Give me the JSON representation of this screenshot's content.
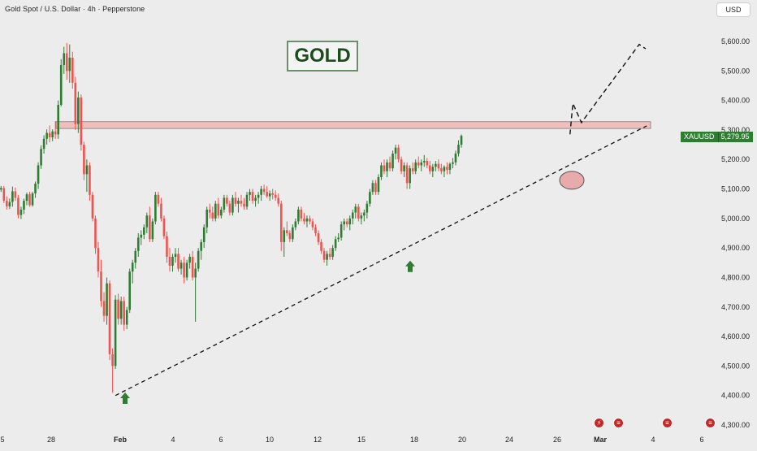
{
  "header": {
    "title": "Gold Spot / U.S. Dollar · 4h · Pepperstone",
    "currency_button": "USD"
  },
  "annotations": {
    "gold_label": "GOLD",
    "symbol": "XAUUSD",
    "last_price": "5,279.95"
  },
  "colors": {
    "up": "#2e7d32",
    "down": "#ef5350",
    "background": "#ececec",
    "resistance_zone": "#f2b6b6",
    "accent_green": "#2e7d32",
    "marker_red": "#c62828"
  },
  "event_icons": [
    "dividend-icon",
    "flag-icon",
    "flag-icon",
    "flag-icon"
  ],
  "chart_data": {
    "type": "candlestick",
    "title": "Gold Spot / U.S. Dollar · 4h · Pepperstone",
    "ylim": [
      4280,
      5680
    ],
    "y_ticks": [
      "5,600.00",
      "5,500.00",
      "5,400.00",
      "5,300.00",
      "5,200.00",
      "5,100.00",
      "5,000.00",
      "4,900.00",
      "4,800.00",
      "4,700.00",
      "4,600.00",
      "4,500.00",
      "4,400.00",
      "4,300.00"
    ],
    "x_ticks": [
      "5",
      "28",
      "Feb",
      "4",
      "6",
      "10",
      "12",
      "15",
      "18",
      "20",
      "24",
      "26",
      "Mar",
      "4",
      "6"
    ],
    "x_tick_index": [
      0,
      17,
      40,
      57,
      73,
      89,
      105,
      121,
      137,
      153,
      169,
      184,
      199,
      216,
      232
    ],
    "last_price": 5279.95,
    "resistance_zone": [
      5305,
      5328
    ],
    "trendline": {
      "from": [
        40,
        4400
      ],
      "to": [
        212,
        5245
      ]
    },
    "projection_path": [
      [
        199,
        5285
      ],
      [
        200,
        5390
      ],
      [
        203,
        5325
      ],
      [
        212,
        5595
      ],
      [
        213,
        5580
      ]
    ],
    "up_arrows": [
      [
        40,
        4388
      ],
      [
        135,
        4835
      ]
    ],
    "highlight_circle": [
      188,
      5135
    ],
    "candles": [
      [
        5098,
        5110,
        5090,
        5103
      ],
      [
        5103,
        5110,
        5052,
        5060
      ],
      [
        5060,
        5075,
        5030,
        5041
      ],
      [
        5041,
        5068,
        5032,
        5056
      ],
      [
        5056,
        5108,
        5040,
        5092
      ],
      [
        5092,
        5105,
        5060,
        5070
      ],
      [
        5070,
        5080,
        5000,
        5012
      ],
      [
        5012,
        5040,
        4998,
        5030
      ],
      [
        5030,
        5067,
        5015,
        5060
      ],
      [
        5060,
        5088,
        5045,
        5082
      ],
      [
        5082,
        5090,
        5040,
        5045
      ],
      [
        5045,
        5090,
        5040,
        5085
      ],
      [
        5085,
        5125,
        5070,
        5118
      ],
      [
        5118,
        5190,
        5100,
        5180
      ],
      [
        5180,
        5248,
        5168,
        5236
      ],
      [
        5236,
        5282,
        5220,
        5270
      ],
      [
        5270,
        5302,
        5250,
        5290
      ],
      [
        5290,
        5315,
        5258,
        5275
      ],
      [
        5275,
        5302,
        5262,
        5295
      ],
      [
        5295,
        5330,
        5270,
        5285
      ],
      [
        5285,
        5400,
        5270,
        5385
      ],
      [
        5385,
        5540,
        5380,
        5520
      ],
      [
        5520,
        5582,
        5490,
        5560
      ],
      [
        5560,
        5595,
        5470,
        5500
      ],
      [
        5500,
        5590,
        5460,
        5545
      ],
      [
        5545,
        5565,
        5440,
        5460
      ],
      [
        5460,
        5480,
        5300,
        5320
      ],
      [
        5320,
        5430,
        5290,
        5410
      ],
      [
        5410,
        5420,
        5230,
        5250
      ],
      [
        5250,
        5260,
        5130,
        5150
      ],
      [
        5150,
        5200,
        5090,
        5180
      ],
      [
        5180,
        5190,
        5060,
        5080
      ],
      [
        5080,
        5090,
        4990,
        5000
      ],
      [
        5000,
        5010,
        4880,
        4900
      ],
      [
        4900,
        4920,
        4800,
        4820
      ],
      [
        4820,
        4860,
        4700,
        4720
      ],
      [
        4720,
        4750,
        4650,
        4670
      ],
      [
        4670,
        4800,
        4640,
        4780
      ],
      [
        4780,
        4790,
        4520,
        4540
      ],
      [
        4540,
        4560,
        4410,
        4500
      ],
      [
        4500,
        4740,
        4490,
        4725
      ],
      [
        4725,
        4745,
        4640,
        4660
      ],
      [
        4660,
        4735,
        4640,
        4720
      ],
      [
        4720,
        4735,
        4620,
        4640
      ],
      [
        4640,
        4700,
        4625,
        4690
      ],
      [
        4690,
        4830,
        4680,
        4820
      ],
      [
        4820,
        4860,
        4780,
        4850
      ],
      [
        4850,
        4900,
        4830,
        4890
      ],
      [
        4890,
        4950,
        4870,
        4935
      ],
      [
        4935,
        4960,
        4910,
        4945
      ],
      [
        4945,
        4980,
        4930,
        4970
      ],
      [
        4970,
        5020,
        4950,
        5010
      ],
      [
        5010,
        5040,
        4920,
        4930
      ],
      [
        4930,
        5000,
        4920,
        4990
      ],
      [
        4990,
        5090,
        4980,
        5080
      ],
      [
        5080,
        5090,
        5040,
        5050
      ],
      [
        5050,
        5070,
        4990,
        5000
      ],
      [
        5000,
        5010,
        4930,
        4940
      ],
      [
        4940,
        4955,
        4850,
        4870
      ],
      [
        4870,
        4900,
        4820,
        4840
      ],
      [
        4840,
        4880,
        4820,
        4870
      ],
      [
        4870,
        4900,
        4850,
        4880
      ],
      [
        4880,
        4900,
        4820,
        4830
      ],
      [
        4830,
        4860,
        4810,
        4850
      ],
      [
        4850,
        4870,
        4780,
        4800
      ],
      [
        4800,
        4860,
        4790,
        4850
      ],
      [
        4850,
        4880,
        4830,
        4870
      ],
      [
        4870,
        4890,
        4790,
        4800
      ],
      [
        4800,
        4850,
        4650,
        4830
      ],
      [
        4830,
        4900,
        4820,
        4890
      ],
      [
        4890,
        4930,
        4860,
        4920
      ],
      [
        4920,
        4980,
        4900,
        4970
      ],
      [
        4970,
        5040,
        4950,
        5030
      ],
      [
        5030,
        5050,
        5000,
        5020
      ],
      [
        5020,
        5040,
        4990,
        5000
      ],
      [
        5000,
        5060,
        4990,
        5050
      ],
      [
        5050,
        5070,
        5000,
        5010
      ],
      [
        5010,
        5040,
        5000,
        5030
      ],
      [
        5030,
        5080,
        5020,
        5070
      ],
      [
        5070,
        5080,
        5040,
        5050
      ],
      [
        5050,
        5060,
        5010,
        5020
      ],
      [
        5020,
        5080,
        5010,
        5070
      ],
      [
        5070,
        5090,
        5040,
        5050
      ],
      [
        5050,
        5070,
        5020,
        5060
      ],
      [
        5060,
        5080,
        5040,
        5050
      ],
      [
        5050,
        5070,
        5030,
        5040
      ],
      [
        5040,
        5090,
        5030,
        5080
      ],
      [
        5080,
        5100,
        5060,
        5090
      ],
      [
        5090,
        5100,
        5050,
        5060
      ],
      [
        5060,
        5080,
        5040,
        5070
      ],
      [
        5070,
        5090,
        5050,
        5080
      ],
      [
        5080,
        5110,
        5060,
        5100
      ],
      [
        5100,
        5115,
        5080,
        5090
      ],
      [
        5090,
        5110,
        5070,
        5075
      ],
      [
        5075,
        5095,
        5060,
        5085
      ],
      [
        5085,
        5100,
        5065,
        5080
      ],
      [
        5080,
        5095,
        5060,
        5070
      ],
      [
        5070,
        5085,
        5040,
        5050
      ],
      [
        5050,
        5060,
        4890,
        4920
      ],
      [
        4920,
        4970,
        4870,
        4960
      ],
      [
        4960,
        4990,
        4940,
        4950
      ],
      [
        4950,
        4960,
        4920,
        4930
      ],
      [
        4930,
        4980,
        4920,
        4970
      ],
      [
        4970,
        5000,
        4960,
        4990
      ],
      [
        4990,
        5040,
        4980,
        5030
      ],
      [
        5030,
        5040,
        4990,
        5000
      ],
      [
        5000,
        5020,
        4980,
        4990
      ],
      [
        4990,
        5010,
        4970,
        5000
      ],
      [
        5000,
        5010,
        4980,
        4990
      ],
      [
        4990,
        5000,
        4960,
        4970
      ],
      [
        4970,
        4980,
        4940,
        4950
      ],
      [
        4950,
        4960,
        4910,
        4920
      ],
      [
        4920,
        4930,
        4880,
        4890
      ],
      [
        4890,
        4900,
        4850,
        4860
      ],
      [
        4860,
        4890,
        4840,
        4880
      ],
      [
        4880,
        4900,
        4860,
        4870
      ],
      [
        4870,
        4910,
        4860,
        4900
      ],
      [
        4900,
        4940,
        4890,
        4930
      ],
      [
        4930,
        4950,
        4920,
        4935
      ],
      [
        4935,
        4990,
        4925,
        4980
      ],
      [
        4980,
        5000,
        4960,
        4990
      ],
      [
        4990,
        5000,
        4970,
        4980
      ],
      [
        4980,
        5010,
        4960,
        5000
      ],
      [
        5000,
        5030,
        4980,
        5020
      ],
      [
        5020,
        5050,
        5000,
        5040
      ],
      [
        5040,
        5050,
        4990,
        5000
      ],
      [
        5000,
        5020,
        4980,
        5010
      ],
      [
        5010,
        5030,
        4990,
        5020
      ],
      [
        5020,
        5060,
        5000,
        5050
      ],
      [
        5050,
        5100,
        5040,
        5090
      ],
      [
        5090,
        5130,
        5080,
        5120
      ],
      [
        5120,
        5130,
        5080,
        5090
      ],
      [
        5090,
        5150,
        5080,
        5140
      ],
      [
        5140,
        5190,
        5130,
        5180
      ],
      [
        5180,
        5200,
        5150,
        5160
      ],
      [
        5160,
        5200,
        5140,
        5190
      ],
      [
        5190,
        5210,
        5160,
        5170
      ],
      [
        5170,
        5230,
        5160,
        5220
      ],
      [
        5220,
        5250,
        5200,
        5240
      ],
      [
        5240,
        5250,
        5190,
        5200
      ],
      [
        5200,
        5210,
        5150,
        5160
      ],
      [
        5160,
        5190,
        5140,
        5180
      ],
      [
        5180,
        5190,
        5100,
        5120
      ],
      [
        5120,
        5180,
        5100,
        5170
      ],
      [
        5170,
        5190,
        5150,
        5160
      ],
      [
        5160,
        5200,
        5150,
        5190
      ],
      [
        5190,
        5210,
        5170,
        5180
      ],
      [
        5180,
        5200,
        5160,
        5190
      ],
      [
        5190,
        5215,
        5175,
        5195
      ],
      [
        5195,
        5205,
        5170,
        5180
      ],
      [
        5180,
        5195,
        5150,
        5160
      ],
      [
        5160,
        5185,
        5140,
        5175
      ],
      [
        5175,
        5195,
        5160,
        5185
      ],
      [
        5185,
        5200,
        5160,
        5170
      ],
      [
        5170,
        5185,
        5150,
        5160
      ],
      [
        5160,
        5180,
        5140,
        5175
      ],
      [
        5175,
        5190,
        5150,
        5165
      ],
      [
        5165,
        5190,
        5150,
        5185
      ],
      [
        5185,
        5205,
        5170,
        5190
      ],
      [
        5190,
        5230,
        5180,
        5220
      ],
      [
        5220,
        5265,
        5210,
        5250
      ],
      [
        5250,
        5285,
        5240,
        5280
      ]
    ]
  }
}
